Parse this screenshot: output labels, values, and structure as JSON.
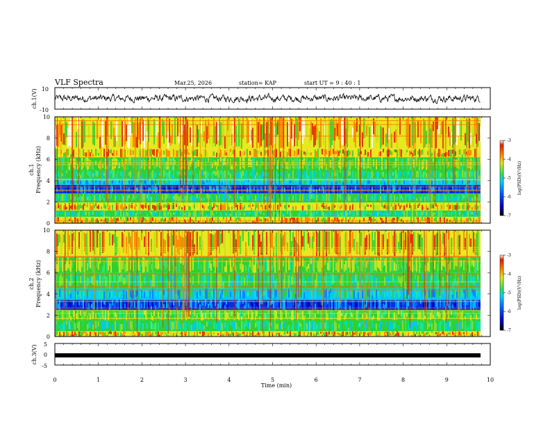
{
  "header": {
    "title": "VLF Spectra",
    "date": "Mar.25, 2026",
    "station": "station= KAP",
    "start": "start  UT =   9 : 40 : 1"
  },
  "colors": {
    "background": "#ffffff",
    "waveform": "#000000",
    "colormap": [
      "#000000",
      "#0000a0",
      "#0050ff",
      "#00c8ff",
      "#20e8a0",
      "#30d030",
      "#e8e820",
      "#ff8000",
      "#e02000",
      "#ffffff"
    ]
  },
  "chart_data": [
    {
      "type": "line",
      "name": "ch1-waveform",
      "ylabel": "ch.1(V)",
      "ylim": [
        -10,
        10
      ],
      "y_tick_labels": [
        "10",
        "-10"
      ],
      "xlim": [
        0,
        10
      ],
      "description_values": "continuous noise waveform approx. between -3 and 3 V"
    },
    {
      "type": "heatmap",
      "name": "ch1-spectrogram",
      "ylabel": "ch.1\nFrequency (kHz)",
      "ylabel_channel": "ch.1",
      "ylabel_freq": "Frequency (kHz)",
      "ylim": [
        0,
        10
      ],
      "y_tick_labels": [
        "0",
        "2",
        "4",
        "6",
        "8",
        "10"
      ],
      "xlim": [
        0,
        10
      ],
      "colorbar": {
        "label": "log(PSD)(V²/Hz)",
        "range": [
          -7,
          -3
        ],
        "tick_labels": [
          "-3",
          "-4",
          "-5",
          "-6",
          "-7"
        ]
      },
      "bands_khz": [
        {
          "from": 0,
          "to": 0.6,
          "level": "high"
        },
        {
          "from": 0.6,
          "to": 1.2,
          "level": "mid"
        },
        {
          "from": 1.2,
          "to": 1.9,
          "level": "high"
        },
        {
          "from": 1.9,
          "to": 2.8,
          "level": "mid"
        },
        {
          "from": 2.8,
          "to": 3.6,
          "level": "low"
        },
        {
          "from": 3.6,
          "to": 4.2,
          "level": "low-mid"
        },
        {
          "from": 4.2,
          "to": 5.0,
          "level": "mid"
        },
        {
          "from": 5.0,
          "to": 6.2,
          "level": "mid-high"
        },
        {
          "from": 6.2,
          "to": 7.0,
          "level": "high"
        },
        {
          "from": 7.0,
          "to": 10.0,
          "level": "very-high"
        }
      ]
    },
    {
      "type": "heatmap",
      "name": "ch2-spectrogram",
      "ylabel_channel": "ch.2",
      "ylabel_freq": "Frequency (kHz)",
      "ylim": [
        0,
        10
      ],
      "y_tick_labels": [
        "0",
        "2",
        "4",
        "6",
        "8",
        "10"
      ],
      "xlim": [
        0,
        10
      ],
      "colorbar": {
        "label": "log(PSD)(V²/Hz)",
        "range": [
          -7,
          -3
        ],
        "tick_labels": [
          "-3",
          "-4",
          "-5",
          "-6",
          "-7"
        ]
      },
      "bands_khz": [
        {
          "from": 0,
          "to": 0.5,
          "level": "high"
        },
        {
          "from": 0.5,
          "to": 1.5,
          "level": "mid"
        },
        {
          "from": 1.5,
          "to": 2.5,
          "level": "mid-high"
        },
        {
          "from": 2.5,
          "to": 3.5,
          "level": "low"
        },
        {
          "from": 3.5,
          "to": 4.5,
          "level": "low-mid"
        },
        {
          "from": 4.5,
          "to": 6.0,
          "level": "mid"
        },
        {
          "from": 6.0,
          "to": 7.5,
          "level": "mid-high"
        },
        {
          "from": 7.5,
          "to": 10.0,
          "level": "high"
        }
      ]
    },
    {
      "type": "line",
      "name": "ch3-signal",
      "ylabel": "ch.3(V)",
      "ylim": [
        -5,
        5
      ],
      "y_tick_labels": [
        "5",
        "0",
        "-5"
      ],
      "xlim": [
        0,
        10
      ],
      "level_v": -0.5
    }
  ],
  "x_axis": {
    "label": "Time  (min)",
    "tick_labels": [
      "0",
      "1",
      "2",
      "3",
      "4",
      "5",
      "6",
      "7",
      "8",
      "9",
      "10"
    ],
    "range": [
      0,
      10
    ]
  }
}
